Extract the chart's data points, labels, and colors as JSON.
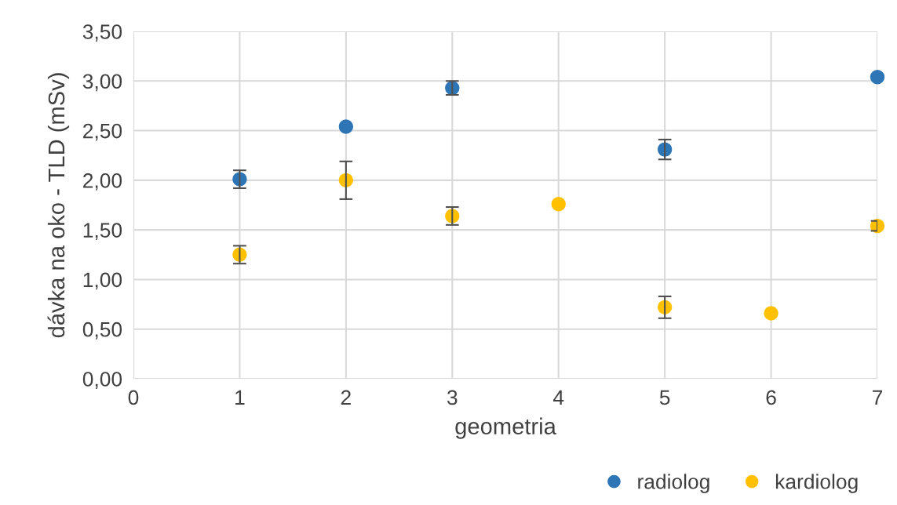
{
  "chart_data": {
    "type": "scatter",
    "xlabel": "geometria",
    "ylabel": "dávka na oko - TLD (mSv)",
    "x": [
      1,
      2,
      3,
      4,
      5,
      6,
      7
    ],
    "series": [
      {
        "name": "radiolog",
        "color": "#2e75b6",
        "values": [
          2.01,
          2.54,
          2.93,
          null,
          2.31,
          null,
          3.04
        ],
        "errors": [
          0.09,
          null,
          0.07,
          null,
          0.1,
          null,
          null
        ]
      },
      {
        "name": "kardiolog",
        "color": "#ffc000",
        "values": [
          1.25,
          2.0,
          1.64,
          1.76,
          0.72,
          0.66,
          1.54
        ],
        "errors": [
          0.09,
          0.19,
          0.09,
          null,
          0.11,
          null,
          0.05
        ]
      }
    ],
    "xlim": [
      0,
      7
    ],
    "xticks": [
      0,
      1,
      2,
      3,
      4,
      5,
      6,
      7
    ],
    "ylim": [
      0,
      3.5
    ],
    "yticks": [
      {
        "value": 0,
        "label": "0,00"
      },
      {
        "value": 0.5,
        "label": "0,50"
      },
      {
        "value": 1,
        "label": "1,00"
      },
      {
        "value": 1.5,
        "label": "1,50"
      },
      {
        "value": 2,
        "label": "2,00"
      },
      {
        "value": 2.5,
        "label": "2,50"
      },
      {
        "value": 3,
        "label": "3,00"
      },
      {
        "value": 3.5,
        "label": "3,50"
      }
    ],
    "grid": true,
    "legend": "bottom right",
    "marker": "circle"
  }
}
